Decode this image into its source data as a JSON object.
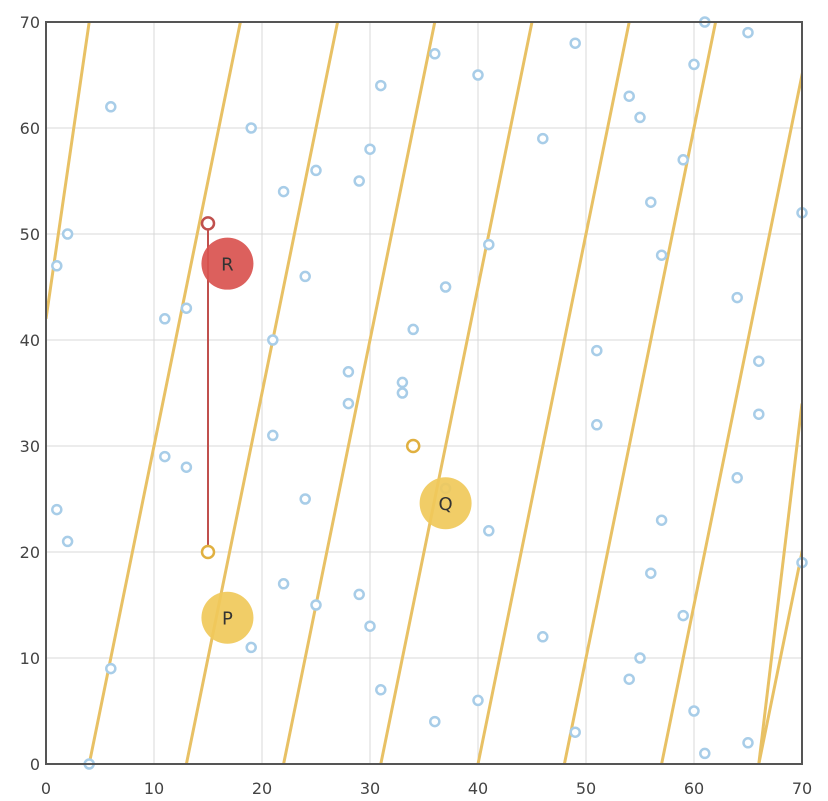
{
  "chart_data": {
    "type": "scatter",
    "title": "",
    "xlabel": "",
    "ylabel": "",
    "xlim": [
      0,
      70
    ],
    "ylim": [
      0,
      70
    ],
    "grid": true,
    "x_ticks": [
      0,
      10,
      20,
      30,
      40,
      50,
      60,
      70
    ],
    "y_ticks": [
      0,
      10,
      20,
      30,
      40,
      50,
      60,
      70
    ],
    "x_tick_labels": [
      "0",
      "10",
      "20",
      "30",
      "40",
      "50",
      "60",
      "70"
    ],
    "y_tick_labels": [
      "0",
      "10",
      "20",
      "30",
      "40",
      "50",
      "60",
      "70"
    ],
    "points": [
      [
        4,
        0
      ],
      [
        6,
        9
      ],
      [
        6,
        62
      ],
      [
        1,
        47
      ],
      [
        2,
        50
      ],
      [
        1,
        24
      ],
      [
        2,
        21
      ],
      [
        11,
        42
      ],
      [
        13,
        43
      ],
      [
        11,
        29
      ],
      [
        13,
        28
      ],
      [
        19,
        11
      ],
      [
        19,
        60
      ],
      [
        21,
        40
      ],
      [
        21,
        31
      ],
      [
        22,
        54
      ],
      [
        22,
        17
      ],
      [
        24,
        46
      ],
      [
        24,
        25
      ],
      [
        25,
        56
      ],
      [
        25,
        15
      ],
      [
        28,
        37
      ],
      [
        28,
        34
      ],
      [
        29,
        55
      ],
      [
        29,
        16
      ],
      [
        30,
        58
      ],
      [
        30,
        13
      ],
      [
        31,
        64
      ],
      [
        31,
        7
      ],
      [
        33,
        36
      ],
      [
        33,
        35
      ],
      [
        34,
        41
      ],
      [
        36,
        67
      ],
      [
        36,
        4
      ],
      [
        37,
        45
      ],
      [
        37,
        26
      ],
      [
        40,
        65
      ],
      [
        40,
        6
      ],
      [
        41,
        49
      ],
      [
        41,
        22
      ],
      [
        46,
        59
      ],
      [
        46,
        12
      ],
      [
        49,
        68
      ],
      [
        49,
        3
      ],
      [
        51,
        39
      ],
      [
        51,
        32
      ],
      [
        54,
        63
      ],
      [
        54,
        8
      ],
      [
        55,
        61
      ],
      [
        55,
        10
      ],
      [
        56,
        53
      ],
      [
        56,
        18
      ],
      [
        57,
        48
      ],
      [
        57,
        23
      ],
      [
        59,
        57
      ],
      [
        59,
        14
      ],
      [
        60,
        66
      ],
      [
        60,
        5
      ],
      [
        61,
        70
      ],
      [
        61,
        1
      ],
      [
        64,
        44
      ],
      [
        64,
        27
      ],
      [
        65,
        69
      ],
      [
        65,
        2
      ],
      [
        66,
        38
      ],
      [
        66,
        33
      ],
      [
        70,
        52
      ],
      [
        70,
        19
      ]
    ],
    "lines": {
      "slope": 5.0,
      "x_intercepts": [
        4,
        13,
        22,
        31,
        40,
        48,
        57,
        66
      ],
      "extra_line": {
        "x1": 66,
        "y1": 0,
        "x2": 70,
        "y2": 34
      },
      "first_line": {
        "x1": 0,
        "y1": 42,
        "x2": 4,
        "y2": 70
      }
    },
    "segment": {
      "from": [
        15,
        20
      ],
      "to": [
        15,
        51
      ]
    },
    "highlight_points": [
      [
        15,
        20
      ],
      [
        15,
        51
      ],
      [
        34,
        30
      ]
    ],
    "markers": [
      {
        "label": "P",
        "x": 16.8,
        "y": 13.8,
        "color": "#f0c95a"
      },
      {
        "label": "Q",
        "x": 37.0,
        "y": 24.6,
        "color": "#f0c95a"
      },
      {
        "label": "R",
        "x": 16.8,
        "y": 47.2,
        "color": "#d9534f"
      }
    ],
    "colors": {
      "line": "#e8c165",
      "point_stroke": "#a8cde8",
      "segment": "#c0504d",
      "grid": "#d8d8d8",
      "axes": "#555555"
    }
  }
}
